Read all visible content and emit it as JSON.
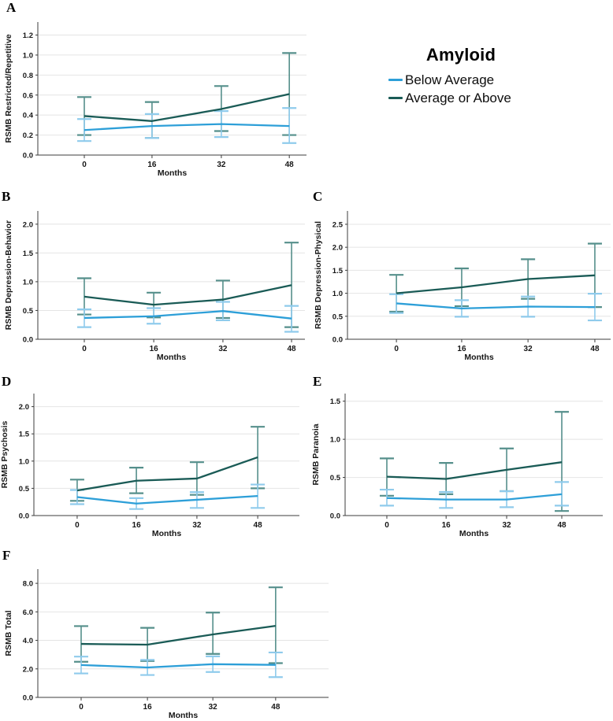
{
  "legend": {
    "title": "Amyloid",
    "items": [
      {
        "label": "Below Average",
        "key": "below_average"
      },
      {
        "label": "Average or Above",
        "key": "average_or_above"
      }
    ]
  },
  "colors": {
    "below_average_line": "#2D9FD8",
    "below_average_error": "#8FCBEC",
    "average_or_above_line": "#1A5B56",
    "average_or_above_error": "#558F8B",
    "gridline": "#E4E4E4",
    "axis": "#3C3C3C",
    "text": "#161616"
  },
  "chart_data": [
    {
      "panel": "A",
      "type": "line",
      "ylabel": "RSMB Restricted/Repetitive",
      "xlabel": "Months",
      "x": [
        0,
        16,
        32,
        48
      ],
      "yticks": [
        0.0,
        0.2,
        0.4,
        0.6,
        0.8,
        1.0,
        1.2
      ],
      "ylim": [
        0,
        1.33
      ],
      "grid": true,
      "legend_position": "top-right-outside",
      "series": [
        {
          "name": "Below Average",
          "key": "below_average",
          "means": [
            0.25,
            0.29,
            0.31,
            0.29
          ],
          "ci_low": [
            0.14,
            0.17,
            0.18,
            0.12
          ],
          "ci_high": [
            0.36,
            0.41,
            0.44,
            0.47
          ]
        },
        {
          "name": "Average or Above",
          "key": "average_or_above",
          "means": [
            0.39,
            0.34,
            0.46,
            0.61
          ],
          "ci_low": [
            0.2,
            0.17,
            0.24,
            0.2
          ],
          "ci_high": [
            0.58,
            0.53,
            0.69,
            1.02
          ]
        }
      ]
    },
    {
      "panel": "B",
      "type": "line",
      "ylabel": "RSMB Depression-Behavior",
      "xlabel": "Months",
      "x": [
        0,
        16,
        32,
        48
      ],
      "yticks": [
        0.0,
        0.5,
        1.0,
        1.5,
        2.0
      ],
      "ylim": [
        0,
        2.23
      ],
      "grid": true,
      "series": [
        {
          "name": "Below Average",
          "key": "below_average",
          "means": [
            0.37,
            0.4,
            0.49,
            0.36
          ],
          "ci_low": [
            0.21,
            0.27,
            0.33,
            0.13
          ],
          "ci_high": [
            0.52,
            0.54,
            0.65,
            0.58
          ]
        },
        {
          "name": "Average or Above",
          "key": "average_or_above",
          "means": [
            0.74,
            0.6,
            0.69,
            0.94
          ],
          "ci_low": [
            0.43,
            0.38,
            0.37,
            0.21
          ],
          "ci_high": [
            1.06,
            0.81,
            1.02,
            1.68
          ]
        }
      ]
    },
    {
      "panel": "C",
      "type": "line",
      "ylabel": "RSMB Depression-Physical",
      "xlabel": "Months",
      "x": [
        0,
        16,
        32,
        48
      ],
      "yticks": [
        0.0,
        0.5,
        1.0,
        1.5,
        2.0,
        2.5
      ],
      "ylim": [
        0,
        2.79
      ],
      "grid": true,
      "series": [
        {
          "name": "Below Average",
          "key": "below_average",
          "means": [
            0.78,
            0.67,
            0.71,
            0.7
          ],
          "ci_low": [
            0.57,
            0.49,
            0.49,
            0.41
          ],
          "ci_high": [
            0.98,
            0.85,
            0.93,
            0.99
          ]
        },
        {
          "name": "Average or Above",
          "key": "average_or_above",
          "means": [
            1.0,
            1.13,
            1.31,
            1.39
          ],
          "ci_low": [
            0.6,
            0.72,
            0.88,
            0.7
          ],
          "ci_high": [
            1.4,
            1.54,
            1.74,
            2.08
          ]
        }
      ]
    },
    {
      "panel": "D",
      "type": "line",
      "ylabel": "RSMB Psychosis",
      "xlabel": "Months",
      "x": [
        0,
        16,
        32,
        48
      ],
      "yticks": [
        0.0,
        0.5,
        1.0,
        1.5,
        2.0
      ],
      "ylim": [
        0,
        2.24
      ],
      "grid": true,
      "series": [
        {
          "name": "Below Average",
          "key": "below_average",
          "means": [
            0.34,
            0.22,
            0.29,
            0.36
          ],
          "ci_low": [
            0.21,
            0.12,
            0.14,
            0.14
          ],
          "ci_high": [
            0.47,
            0.32,
            0.43,
            0.57
          ]
        },
        {
          "name": "Average or Above",
          "key": "average_or_above",
          "means": [
            0.46,
            0.64,
            0.68,
            1.07
          ],
          "ci_low": [
            0.27,
            0.41,
            0.38,
            0.5
          ],
          "ci_high": [
            0.66,
            0.88,
            0.98,
            1.63
          ]
        }
      ]
    },
    {
      "panel": "E",
      "type": "line",
      "ylabel": "RSMB Paranoia",
      "xlabel": "Months",
      "x": [
        0,
        16,
        32,
        48
      ],
      "yticks": [
        0.0,
        0.5,
        1.0,
        1.5
      ],
      "ylim": [
        0,
        1.6
      ],
      "grid": true,
      "series": [
        {
          "name": "Below Average",
          "key": "below_average",
          "means": [
            0.23,
            0.21,
            0.21,
            0.28
          ],
          "ci_low": [
            0.13,
            0.1,
            0.11,
            0.13
          ],
          "ci_high": [
            0.34,
            0.31,
            0.32,
            0.44
          ]
        },
        {
          "name": "Average or Above",
          "key": "average_or_above",
          "means": [
            0.51,
            0.48,
            0.6,
            0.7
          ],
          "ci_low": [
            0.26,
            0.28,
            0.32,
            0.06
          ],
          "ci_high": [
            0.75,
            0.69,
            0.88,
            1.36
          ]
        }
      ]
    },
    {
      "panel": "F",
      "type": "line",
      "ylabel": "RSMB Total",
      "xlabel": "Months",
      "x": [
        0,
        16,
        32,
        48
      ],
      "yticks": [
        0.0,
        2.0,
        4.0,
        6.0,
        8.0
      ],
      "ylim": [
        0,
        9.0
      ],
      "grid": true,
      "series": [
        {
          "name": "Below Average",
          "key": "below_average",
          "means": [
            2.27,
            2.1,
            2.33,
            2.28
          ],
          "ci_low": [
            1.68,
            1.57,
            1.78,
            1.42
          ],
          "ci_high": [
            2.86,
            2.63,
            2.88,
            3.15
          ]
        },
        {
          "name": "Average or Above",
          "key": "average_or_above",
          "means": [
            3.75,
            3.7,
            4.42,
            5.02
          ],
          "ci_low": [
            2.5,
            2.55,
            3.05,
            2.4
          ],
          "ci_high": [
            5.0,
            4.88,
            5.95,
            7.72
          ]
        }
      ]
    }
  ]
}
